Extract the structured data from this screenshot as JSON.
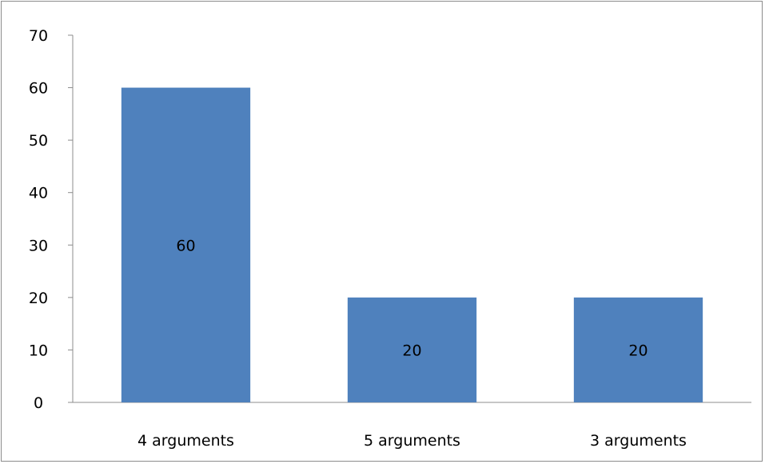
{
  "chart_data": {
    "type": "bar",
    "categories": [
      "4 arguments",
      "5 arguments",
      "3 arguments"
    ],
    "values": [
      60,
      20,
      20
    ],
    "data_labels": [
      "60",
      "20",
      "20"
    ],
    "ylim": [
      0,
      70
    ],
    "y_ticks": [
      0,
      10,
      20,
      30,
      40,
      50,
      60,
      70
    ],
    "y_tick_labels": [
      "0",
      "10",
      "20",
      "30",
      "40",
      "50",
      "60",
      "70"
    ],
    "grid": false,
    "legend": "none",
    "bar_color": "#4f81bd"
  }
}
